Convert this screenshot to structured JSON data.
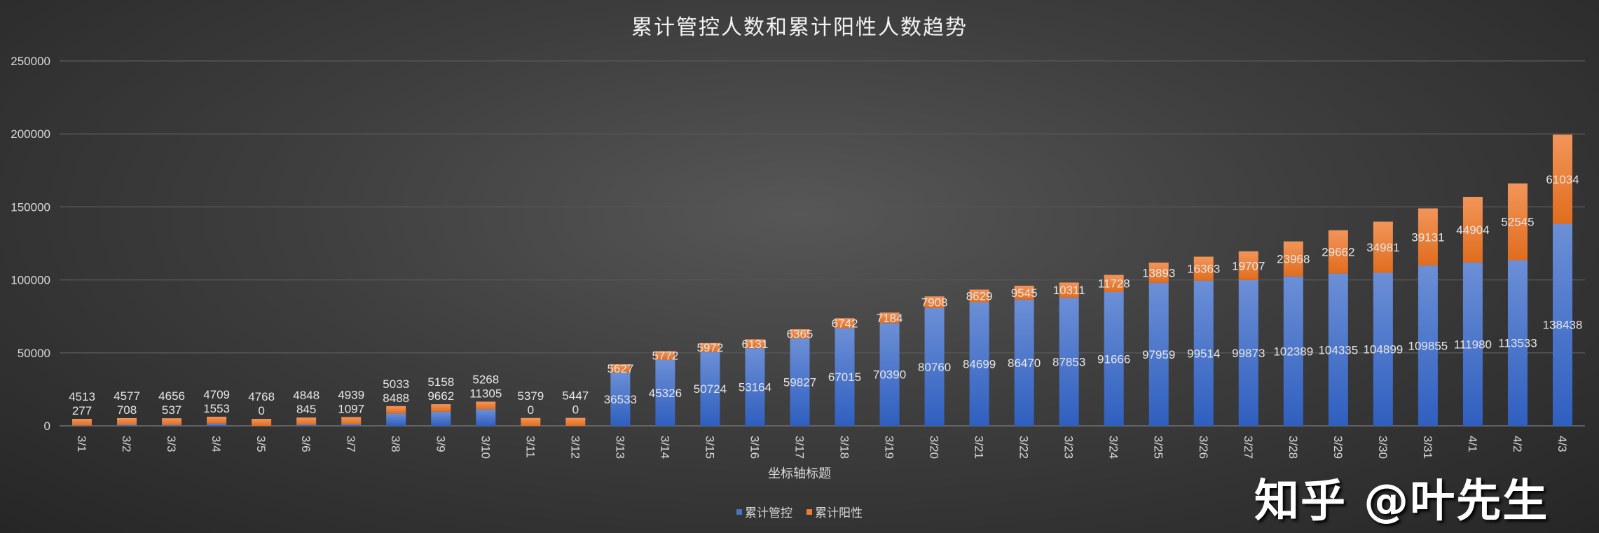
{
  "chart_data": {
    "type": "bar",
    "stacked": true,
    "title": "累计管控人数和累计阳性人数趋势",
    "xlabel": "坐标轴标题",
    "ylabel": "",
    "ylim": [
      0,
      250000
    ],
    "yticks": [
      0,
      50000,
      100000,
      150000,
      200000,
      250000
    ],
    "grid": true,
    "legend": "bottom",
    "categories": [
      "3/1",
      "3/2",
      "3/3",
      "3/4",
      "3/5",
      "3/6",
      "3/7",
      "3/8",
      "3/9",
      "3/10",
      "3/11",
      "3/12",
      "3/13",
      "3/14",
      "3/15",
      "3/16",
      "3/17",
      "3/18",
      "3/19",
      "3/20",
      "3/21",
      "3/22",
      "3/23",
      "3/24",
      "3/25",
      "3/26",
      "3/27",
      "3/28",
      "3/29",
      "3/30",
      "3/31",
      "4/1",
      "4/2",
      "4/3"
    ],
    "series": [
      {
        "name": "累计管控",
        "color": "#4472c4",
        "values": [
          277,
          708,
          537,
          1553,
          0,
          845,
          1097,
          8488,
          9662,
          11305,
          0,
          0,
          36533,
          45326,
          50724,
          53164,
          59827,
          67015,
          70390,
          80760,
          84699,
          86470,
          87853,
          91666,
          97959,
          99514,
          99873,
          102389,
          104335,
          104899,
          109855,
          111980,
          113533,
          138438
        ]
      },
      {
        "name": "累计阳性",
        "color": "#ed7d31",
        "values": [
          4513,
          4577,
          4656,
          4709,
          4768,
          4848,
          4939,
          5033,
          5158,
          5268,
          5379,
          5447,
          5627,
          5772,
          5972,
          6131,
          6365,
          6742,
          7184,
          7908,
          8629,
          9545,
          10311,
          11728,
          13893,
          16363,
          19707,
          23968,
          29662,
          34981,
          39131,
          44904,
          52545,
          61034
        ]
      }
    ]
  },
  "watermark": "知乎 @叶先生"
}
